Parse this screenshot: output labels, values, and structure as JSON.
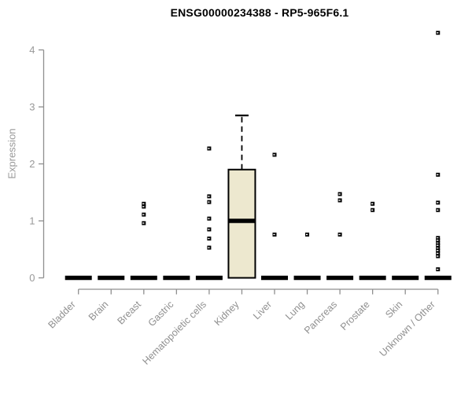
{
  "chart_data": {
    "type": "boxplot",
    "title": "ENSG00000234388 - RP5-965F6.1",
    "ylabel": "Expression",
    "xlabel": "",
    "ylim": [
      0,
      4
    ],
    "yticks": [
      0,
      1,
      2,
      3,
      4
    ],
    "grid": false,
    "legend": "none",
    "categories": [
      "Bladder",
      "Brain",
      "Breast",
      "Gastric",
      "Hematopoietic cells",
      "Kidney",
      "Liver",
      "Lung",
      "Pancreas",
      "Prostate",
      "Skin",
      "Unknown / Other"
    ],
    "boxes": [
      {
        "category": "Bladder",
        "whisker_low": 0,
        "q1": 0,
        "median": 0,
        "q3": 0,
        "whisker_high": 0,
        "outliers": []
      },
      {
        "category": "Brain",
        "whisker_low": 0,
        "q1": 0,
        "median": 0,
        "q3": 0,
        "whisker_high": 0,
        "outliers": []
      },
      {
        "category": "Breast",
        "whisker_low": 0,
        "q1": 0,
        "median": 0,
        "q3": 0,
        "whisker_high": 0,
        "outliers": [
          1.3,
          1.25,
          1.11,
          0.96
        ]
      },
      {
        "category": "Gastric",
        "whisker_low": 0,
        "q1": 0,
        "median": 0,
        "q3": 0,
        "whisker_high": 0,
        "outliers": []
      },
      {
        "category": "Hematopoietic cells",
        "whisker_low": 0,
        "q1": 0,
        "median": 0,
        "q3": 0,
        "whisker_high": 0,
        "outliers": [
          2.27,
          1.43,
          1.33,
          1.04,
          0.85,
          0.69,
          0.53
        ]
      },
      {
        "category": "Kidney",
        "whisker_low": 0,
        "q1": 0,
        "median": 1.0,
        "q3": 1.9,
        "whisker_high": 2.85,
        "outliers": []
      },
      {
        "category": "Liver",
        "whisker_low": 0,
        "q1": 0,
        "median": 0,
        "q3": 0,
        "whisker_high": 0,
        "outliers": [
          2.16,
          0.76
        ]
      },
      {
        "category": "Lung",
        "whisker_low": 0,
        "q1": 0,
        "median": 0,
        "q3": 0,
        "whisker_high": 0,
        "outliers": [
          0.76
        ]
      },
      {
        "category": "Pancreas",
        "whisker_low": 0,
        "q1": 0,
        "median": 0,
        "q3": 0,
        "whisker_high": 0,
        "outliers": [
          1.47,
          1.36,
          0.76
        ]
      },
      {
        "category": "Prostate",
        "whisker_low": 0,
        "q1": 0,
        "median": 0,
        "q3": 0,
        "whisker_high": 0,
        "outliers": [
          1.3,
          1.19
        ]
      },
      {
        "category": "Skin",
        "whisker_low": 0,
        "q1": 0,
        "median": 0,
        "q3": 0,
        "whisker_high": 0,
        "outliers": []
      },
      {
        "category": "Unknown / Other",
        "whisker_low": 0,
        "q1": 0,
        "median": 0,
        "q3": 0,
        "whisker_high": 0,
        "outliers": [
          4.3,
          1.81,
          1.32,
          1.19,
          0.7,
          0.66,
          0.61,
          0.57,
          0.52,
          0.48,
          0.43,
          0.38,
          0.15
        ]
      }
    ],
    "colors": {
      "box_fill": "#ede8cf",
      "box_border": "#000000",
      "median": "#000000",
      "outlier": "#000000",
      "axis": "#8f8f8f",
      "tick_label": "#999999",
      "title": "#000000"
    }
  }
}
